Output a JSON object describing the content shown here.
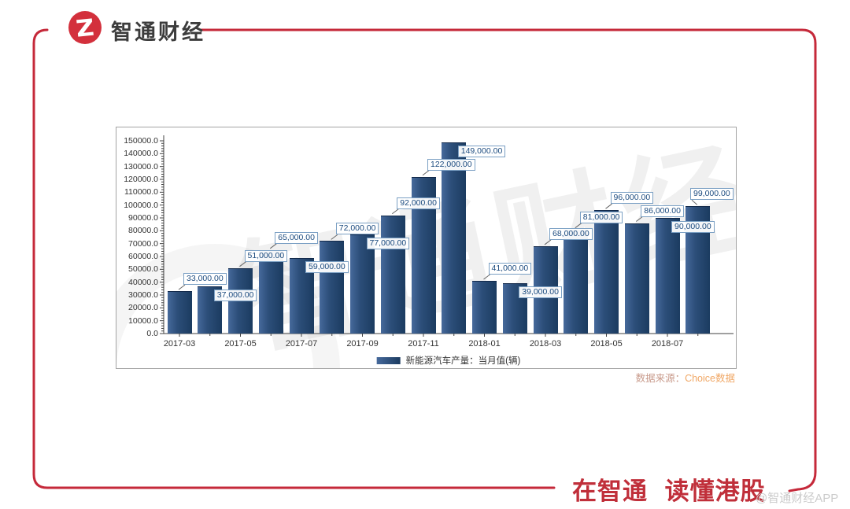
{
  "brand": {
    "name": "智通财经"
  },
  "chart_data": {
    "type": "bar",
    "title": "",
    "series_name": "新能源汽车产量：当月值(辆)",
    "x": [
      "2017-03",
      "2017-04",
      "2017-05",
      "2017-06",
      "2017-07",
      "2017-08",
      "2017-09",
      "2017-10",
      "2017-11",
      "2017-12",
      "2018-01",
      "2018-02",
      "2018-03",
      "2018-04",
      "2018-05",
      "2018-06",
      "2018-07",
      "2018-08"
    ],
    "values": [
      33000,
      37000,
      51000,
      65000,
      59000,
      72000,
      77000,
      92000,
      122000,
      149000,
      41000,
      39000,
      68000,
      81000,
      96000,
      86000,
      90000,
      99000
    ],
    "value_labels": [
      "33,000.00",
      "37,000.00",
      "51,000.00",
      "65,000.00",
      "59,000.00",
      "72,000.00",
      "77,000.00",
      "92,000.00",
      "122,000.00",
      "149,000.00",
      "41,000.00",
      "39,000.00",
      "68,000.00",
      "81,000.00",
      "96,000.00",
      "86,000.00",
      "90,000.00",
      "99,000.00"
    ],
    "x_tick_labels": [
      "2017-03",
      "2017-05",
      "2017-07",
      "2017-09",
      "2017-11",
      "2018-01",
      "2018-03",
      "2018-05",
      "2018-07"
    ],
    "x_labeled_every": 2,
    "ylim": [
      0,
      150000
    ],
    "y_tick_step": 10000,
    "y_minor_step": 2000,
    "y_tick_labels": [
      "0.0",
      "10000.0",
      "20000.0",
      "30000.0",
      "40000.0",
      "50000.0",
      "60000.0",
      "70000.0",
      "80000.0",
      "90000.0",
      "100000.0",
      "110000.0",
      "120000.0",
      "130000.0",
      "140000.0",
      "150000.0"
    ],
    "label_below_indices": [
      1,
      4,
      6,
      9,
      11,
      16
    ],
    "grid": false,
    "legend_position": "bottom-center",
    "bar_color_start": "#46699b",
    "bar_color_end": "#1b3b60"
  },
  "footer": {
    "source_prefix": "数据来源：",
    "source_name": "Choice数据",
    "slogan": "在智通 读懂港股",
    "page_watermark": "@智通财经APP"
  },
  "colors": {
    "brand_red": "#c5293a",
    "logo_red": "#d3303c",
    "slogan_red": "#c02f3a",
    "axis": "#404040",
    "data_label_text": "#1c4b7f",
    "data_label_border": "#7ba0c4",
    "source_prefix": "#c89a8b",
    "source_name": "#f0a765"
  },
  "watermark_text": "智通财经"
}
